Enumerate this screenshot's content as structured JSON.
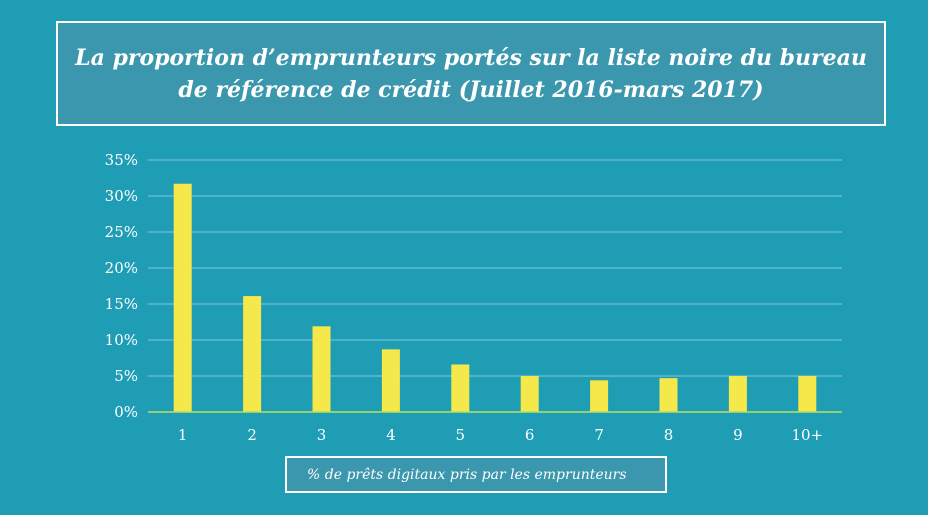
{
  "chart_data": {
    "type": "bar",
    "title": "La proportion d’emprunteurs portés sur la liste noire du bureau de référence de crédit (Juillet 2016-mars 2017)",
    "xlabel": "% de prêts digitaux pris par les emprunteurs",
    "ylabel": "",
    "categories": [
      "1",
      "2",
      "3",
      "4",
      "5",
      "6",
      "7",
      "8",
      "9",
      "10+"
    ],
    "values": [
      31.7,
      16.1,
      11.9,
      8.7,
      6.6,
      5.0,
      4.4,
      4.7,
      5.0,
      5.0
    ],
    "ylim": [
      0,
      35
    ],
    "yticks": [
      "0%",
      "5%",
      "10%",
      "15%",
      "20%",
      "25%",
      "30%",
      "35%"
    ],
    "grid": true,
    "legend": "none",
    "colors": {
      "background": "#1e9db5",
      "bar": "#f5e84a",
      "grid": "#7fc9d8",
      "axis": "#b8e060",
      "box": "#3b97ad"
    }
  }
}
